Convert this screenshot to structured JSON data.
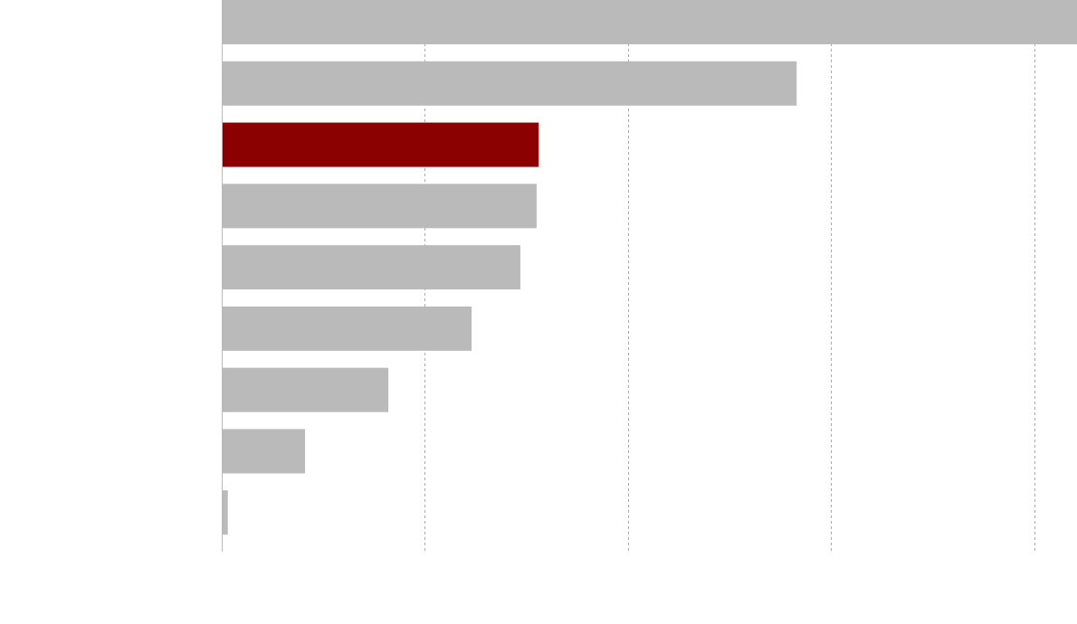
{
  "chart_data": {
    "type": "barh",
    "categories": [
      null,
      null,
      null,
      null,
      null,
      null,
      null,
      null,
      null
    ],
    "values": [
      4.21,
      2.83,
      1.56,
      1.55,
      1.47,
      1.23,
      0.82,
      0.41,
      0.03
    ],
    "colors": [
      "#bababa",
      "#bababa",
      "#8b0000",
      "#bababa",
      "#bababa",
      "#bababa",
      "#bababa",
      "#bababa",
      "#bababa"
    ],
    "xlim": [
      0,
      4.21
    ],
    "xticks": [
      0,
      1,
      2,
      3,
      4
    ],
    "grid": true
  }
}
